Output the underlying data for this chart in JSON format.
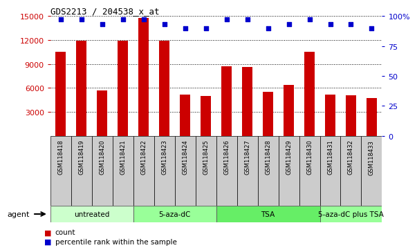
{
  "title": "GDS2213 / 204538_x_at",
  "samples": [
    "GSM118418",
    "GSM118419",
    "GSM118420",
    "GSM118421",
    "GSM118422",
    "GSM118423",
    "GSM118424",
    "GSM118425",
    "GSM118426",
    "GSM118427",
    "GSM118428",
    "GSM118429",
    "GSM118430",
    "GSM118431",
    "GSM118432",
    "GSM118433"
  ],
  "counts": [
    10500,
    11900,
    5700,
    11950,
    14800,
    11900,
    5150,
    4950,
    8700,
    8600,
    5500,
    6400,
    10500,
    5200,
    5100,
    4750
  ],
  "percentiles": [
    97,
    97,
    93,
    97,
    97,
    93,
    90,
    90,
    97,
    97,
    90,
    93,
    97,
    93,
    93,
    90
  ],
  "bar_color": "#cc0000",
  "dot_color": "#0000cc",
  "ylim_left": [
    0,
    15000
  ],
  "ylim_right": [
    0,
    100
  ],
  "yticks_left": [
    3000,
    6000,
    9000,
    12000,
    15000
  ],
  "yticks_right": [
    0,
    25,
    50,
    75,
    100
  ],
  "ytick_right_labels": [
    "0",
    "25",
    "50",
    "75",
    "100%"
  ],
  "groups": [
    {
      "label": "untreated",
      "start": 0,
      "end": 4,
      "color": "#ccffcc"
    },
    {
      "label": "5-aza-dC",
      "start": 4,
      "end": 8,
      "color": "#99ff99"
    },
    {
      "label": "TSA",
      "start": 8,
      "end": 13,
      "color": "#66ee66"
    },
    {
      "label": "5-aza-dC plus TSA",
      "start": 13,
      "end": 16,
      "color": "#99ff99"
    }
  ],
  "agent_label": "agent",
  "legend_count_label": "count",
  "legend_pct_label": "percentile rank within the sample",
  "bar_color_hex": "#cc0000",
  "dot_color_hex": "#0000cc",
  "tick_label_color": "#cc0000",
  "right_axis_color": "#0000cc",
  "sample_box_color": "#cccccc",
  "bar_width": 0.5
}
